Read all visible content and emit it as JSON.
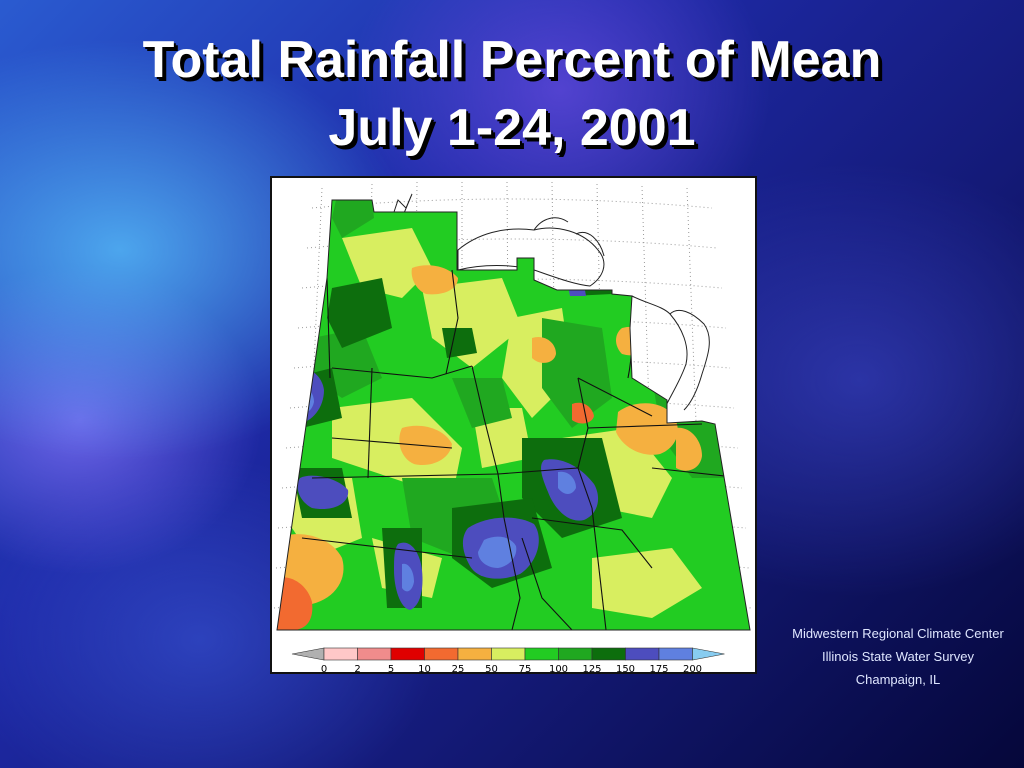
{
  "slide": {
    "title_line1": "Total Rainfall Percent of Mean",
    "title_line2": "July 1-24, 2001"
  },
  "legend": {
    "labels": [
      "0",
      "2",
      "5",
      "10",
      "25",
      "50",
      "75",
      "100",
      "125",
      "150",
      "175",
      "200"
    ],
    "colors": [
      "#ffc8c8",
      "#f08c8c",
      "#e00000",
      "#f26a30",
      "#f5b040",
      "#d8ee60",
      "#22cc22",
      "#20a820",
      "#0d6e0d",
      "#4d4dbe",
      "#5f80e0"
    ],
    "below_color": "#b0b0b0",
    "above_color": "#88ccf0"
  },
  "credits": {
    "line1": "Midwestern Regional Climate Center",
    "line2": "Illinois State Water Survey",
    "line3": "Champaign, IL"
  }
}
